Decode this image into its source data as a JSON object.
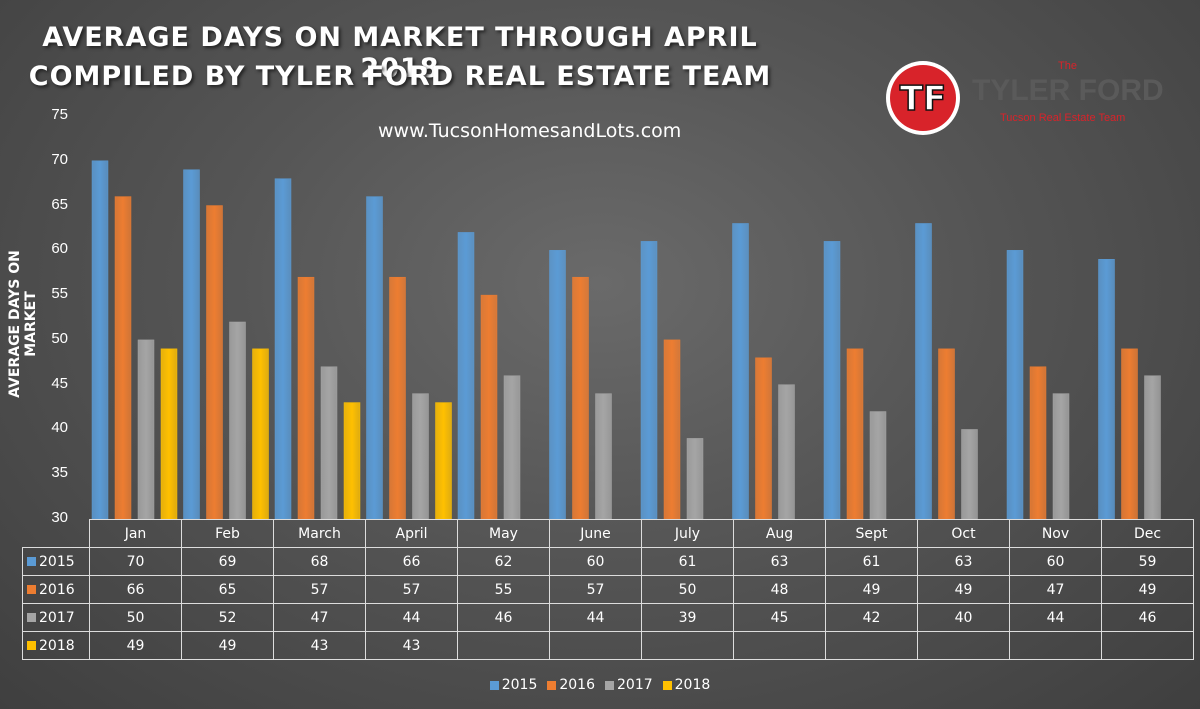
{
  "title_line1": "AVERAGE DAYS ON MARKET THROUGH APRIL 2018",
  "title_line2": "COMPILED BY TYLER FORD REAL ESTATE TEAM",
  "website": "www.TucsonHomesandLots.com",
  "logo": {
    "monogram": "TF",
    "the": "The",
    "name": "TYLER FORD",
    "subtitle": "Tucson Real Estate Team"
  },
  "colors": {
    "2015": "#5b9bd5",
    "2016": "#ed7d31",
    "2017": "#a5a5a5",
    "2018": "#ffc000",
    "logo_red": "#d8232a"
  },
  "chart_data": {
    "type": "bar",
    "ylabel": "AVERAGE DAYS ON MARKET",
    "xlabel": "",
    "ylim": [
      30,
      75
    ],
    "yticks": [
      30,
      35,
      40,
      45,
      50,
      55,
      60,
      65,
      70,
      75
    ],
    "grid": false,
    "legend_position": "bottom",
    "categories": [
      "Jan",
      "Feb",
      "March",
      "April",
      "May",
      "June",
      "July",
      "Aug",
      "Sept",
      "Oct",
      "Nov",
      "Dec"
    ],
    "series": [
      {
        "name": "2015",
        "values": [
          70,
          69,
          68,
          66,
          62,
          60,
          61,
          63,
          61,
          63,
          60,
          59
        ]
      },
      {
        "name": "2016",
        "values": [
          66,
          65,
          57,
          57,
          55,
          57,
          50,
          48,
          49,
          49,
          47,
          49
        ]
      },
      {
        "name": "2017",
        "values": [
          50,
          52,
          47,
          44,
          46,
          44,
          39,
          45,
          42,
          40,
          44,
          46
        ]
      },
      {
        "name": "2018",
        "values": [
          49,
          49,
          43,
          43,
          null,
          null,
          null,
          null,
          null,
          null,
          null,
          null
        ]
      }
    ]
  }
}
